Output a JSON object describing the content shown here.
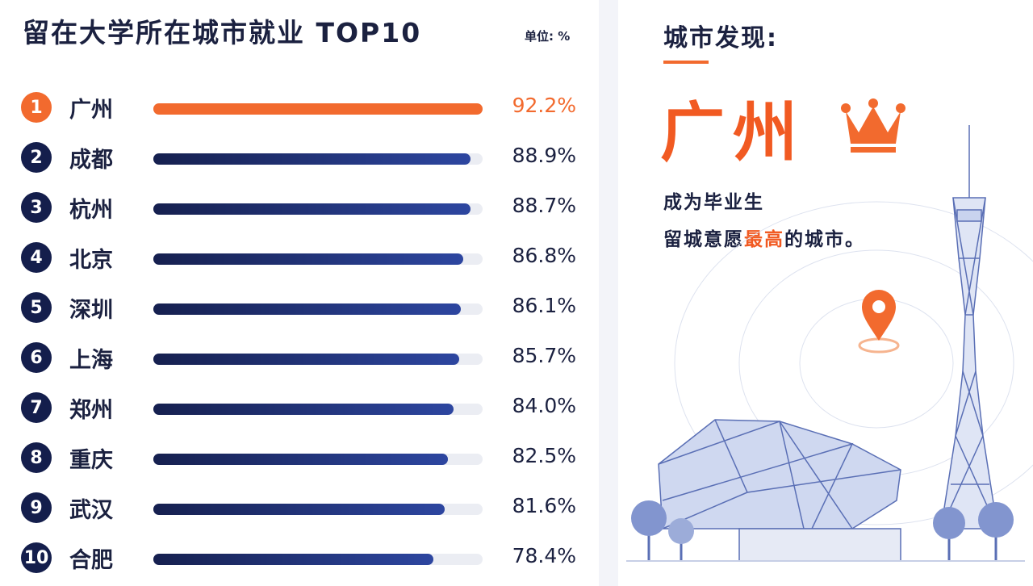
{
  "header": {
    "title": "留在大学所在城市就业 TOP10",
    "unit": "单位: %"
  },
  "chart_data": {
    "type": "bar",
    "orientation": "horizontal",
    "title": "留在大学所在城市就业 TOP10",
    "unit_label": "单位: %",
    "xlim": [
      0,
      92.2
    ],
    "categories": [
      "广州",
      "成都",
      "杭州",
      "北京",
      "深圳",
      "上海",
      "郑州",
      "重庆",
      "武汉",
      "合肥"
    ],
    "ranks": [
      "1",
      "2",
      "3",
      "4",
      "5",
      "6",
      "7",
      "8",
      "9",
      "10"
    ],
    "values": [
      92.2,
      88.9,
      88.7,
      86.8,
      86.1,
      85.7,
      84.0,
      82.5,
      81.6,
      78.4
    ],
    "value_labels": [
      "92.2%",
      "88.9%",
      "88.7%",
      "86.8%",
      "86.1%",
      "85.7%",
      "84.0%",
      "82.5%",
      "81.6%",
      "78.4%"
    ],
    "colors": {
      "highlight": "#f26a2e",
      "bar": "#16204f",
      "track": "#ebedf3"
    }
  },
  "side": {
    "title": "城市发现:",
    "city": "广州",
    "line1": "成为毕业生",
    "line2_pre": "留城意愿",
    "line2_highlight": "最高",
    "line2_post": "的城市。",
    "icons": [
      "crown-icon",
      "location-pin-icon"
    ],
    "accent": "#f15a22"
  }
}
